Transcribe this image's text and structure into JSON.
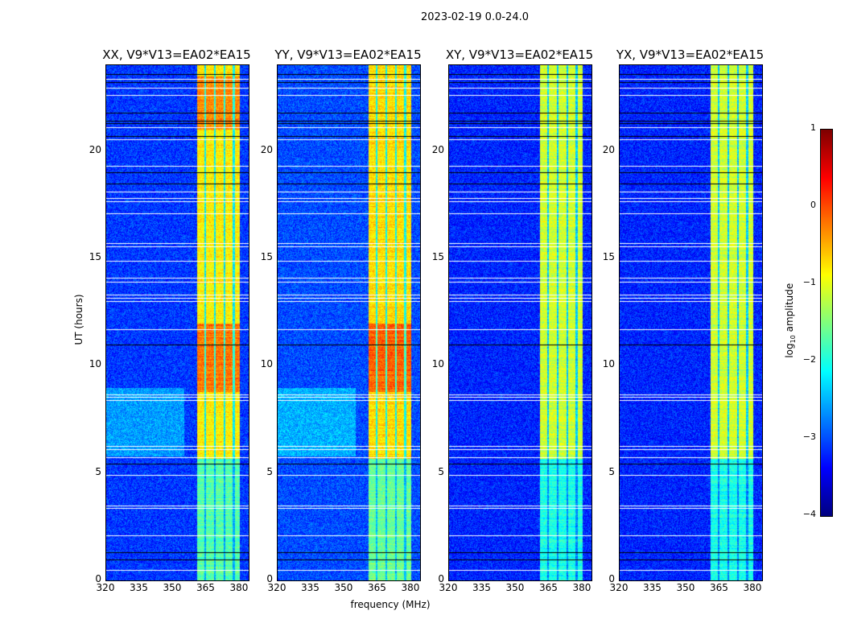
{
  "chart_data": {
    "type": "heatmap",
    "title": "2023-02-19 0.0-24.0",
    "xlabel": "frequency (MHz)",
    "ylabel": "UT (hours)",
    "xlim": [
      320,
      384
    ],
    "ylim": [
      0,
      24
    ],
    "xticks": [
      "320",
      "335",
      "350",
      "365",
      "380"
    ],
    "xtick_values": [
      320,
      335,
      350,
      365,
      380
    ],
    "yticks": [
      "0",
      "5",
      "10",
      "15",
      "20"
    ],
    "ytick_values": [
      0,
      5,
      10,
      15,
      20
    ],
    "panels": [
      {
        "title": "XX, V9*V13=EA02*EA15",
        "background_log_amp": -3.1,
        "band_log_amp": -0.8
      },
      {
        "title": "YY, V9*V13=EA02*EA15",
        "background_log_amp": -3.0,
        "band_log_amp": -0.7
      },
      {
        "title": "XY, V9*V13=EA02*EA15",
        "background_log_amp": -3.2,
        "band_log_amp": -1.1
      },
      {
        "title": "YX, V9*V13=EA02*EA15",
        "background_log_amp": -3.2,
        "band_log_amp": -1.1
      }
    ],
    "rfi_band_mhz": [
      360.5,
      380
    ],
    "flagged_hours_white": [
      0.49,
      2.1,
      3.37,
      3.5,
      4.9,
      5.73,
      6.1,
      6.25,
      8.4,
      8.55,
      8.65,
      11.7,
      13.0,
      13.15,
      13.3,
      13.9,
      14.1,
      14.9,
      15.55,
      15.7,
      17.1,
      17.65,
      17.8,
      18.1,
      19.3,
      20.55,
      21.1,
      22.6,
      22.95,
      23.37
    ],
    "flagged_hours_black": [
      0.97,
      1.3,
      5.43,
      10.97,
      18.5,
      19.0,
      20.7,
      21.3,
      21.4,
      21.8,
      23.2,
      23.6
    ],
    "colorbar": {
      "label": "log10 amplitude",
      "label_main": "log",
      "label_sub": "10",
      "label_rest": " amplitude",
      "range": [
        -4,
        1
      ],
      "ticks": [
        "1",
        "0",
        "−1",
        "−2",
        "−3",
        "−4"
      ],
      "tick_values": [
        1,
        0,
        -1,
        -2,
        -3,
        -4
      ],
      "colormap": "jet"
    }
  }
}
